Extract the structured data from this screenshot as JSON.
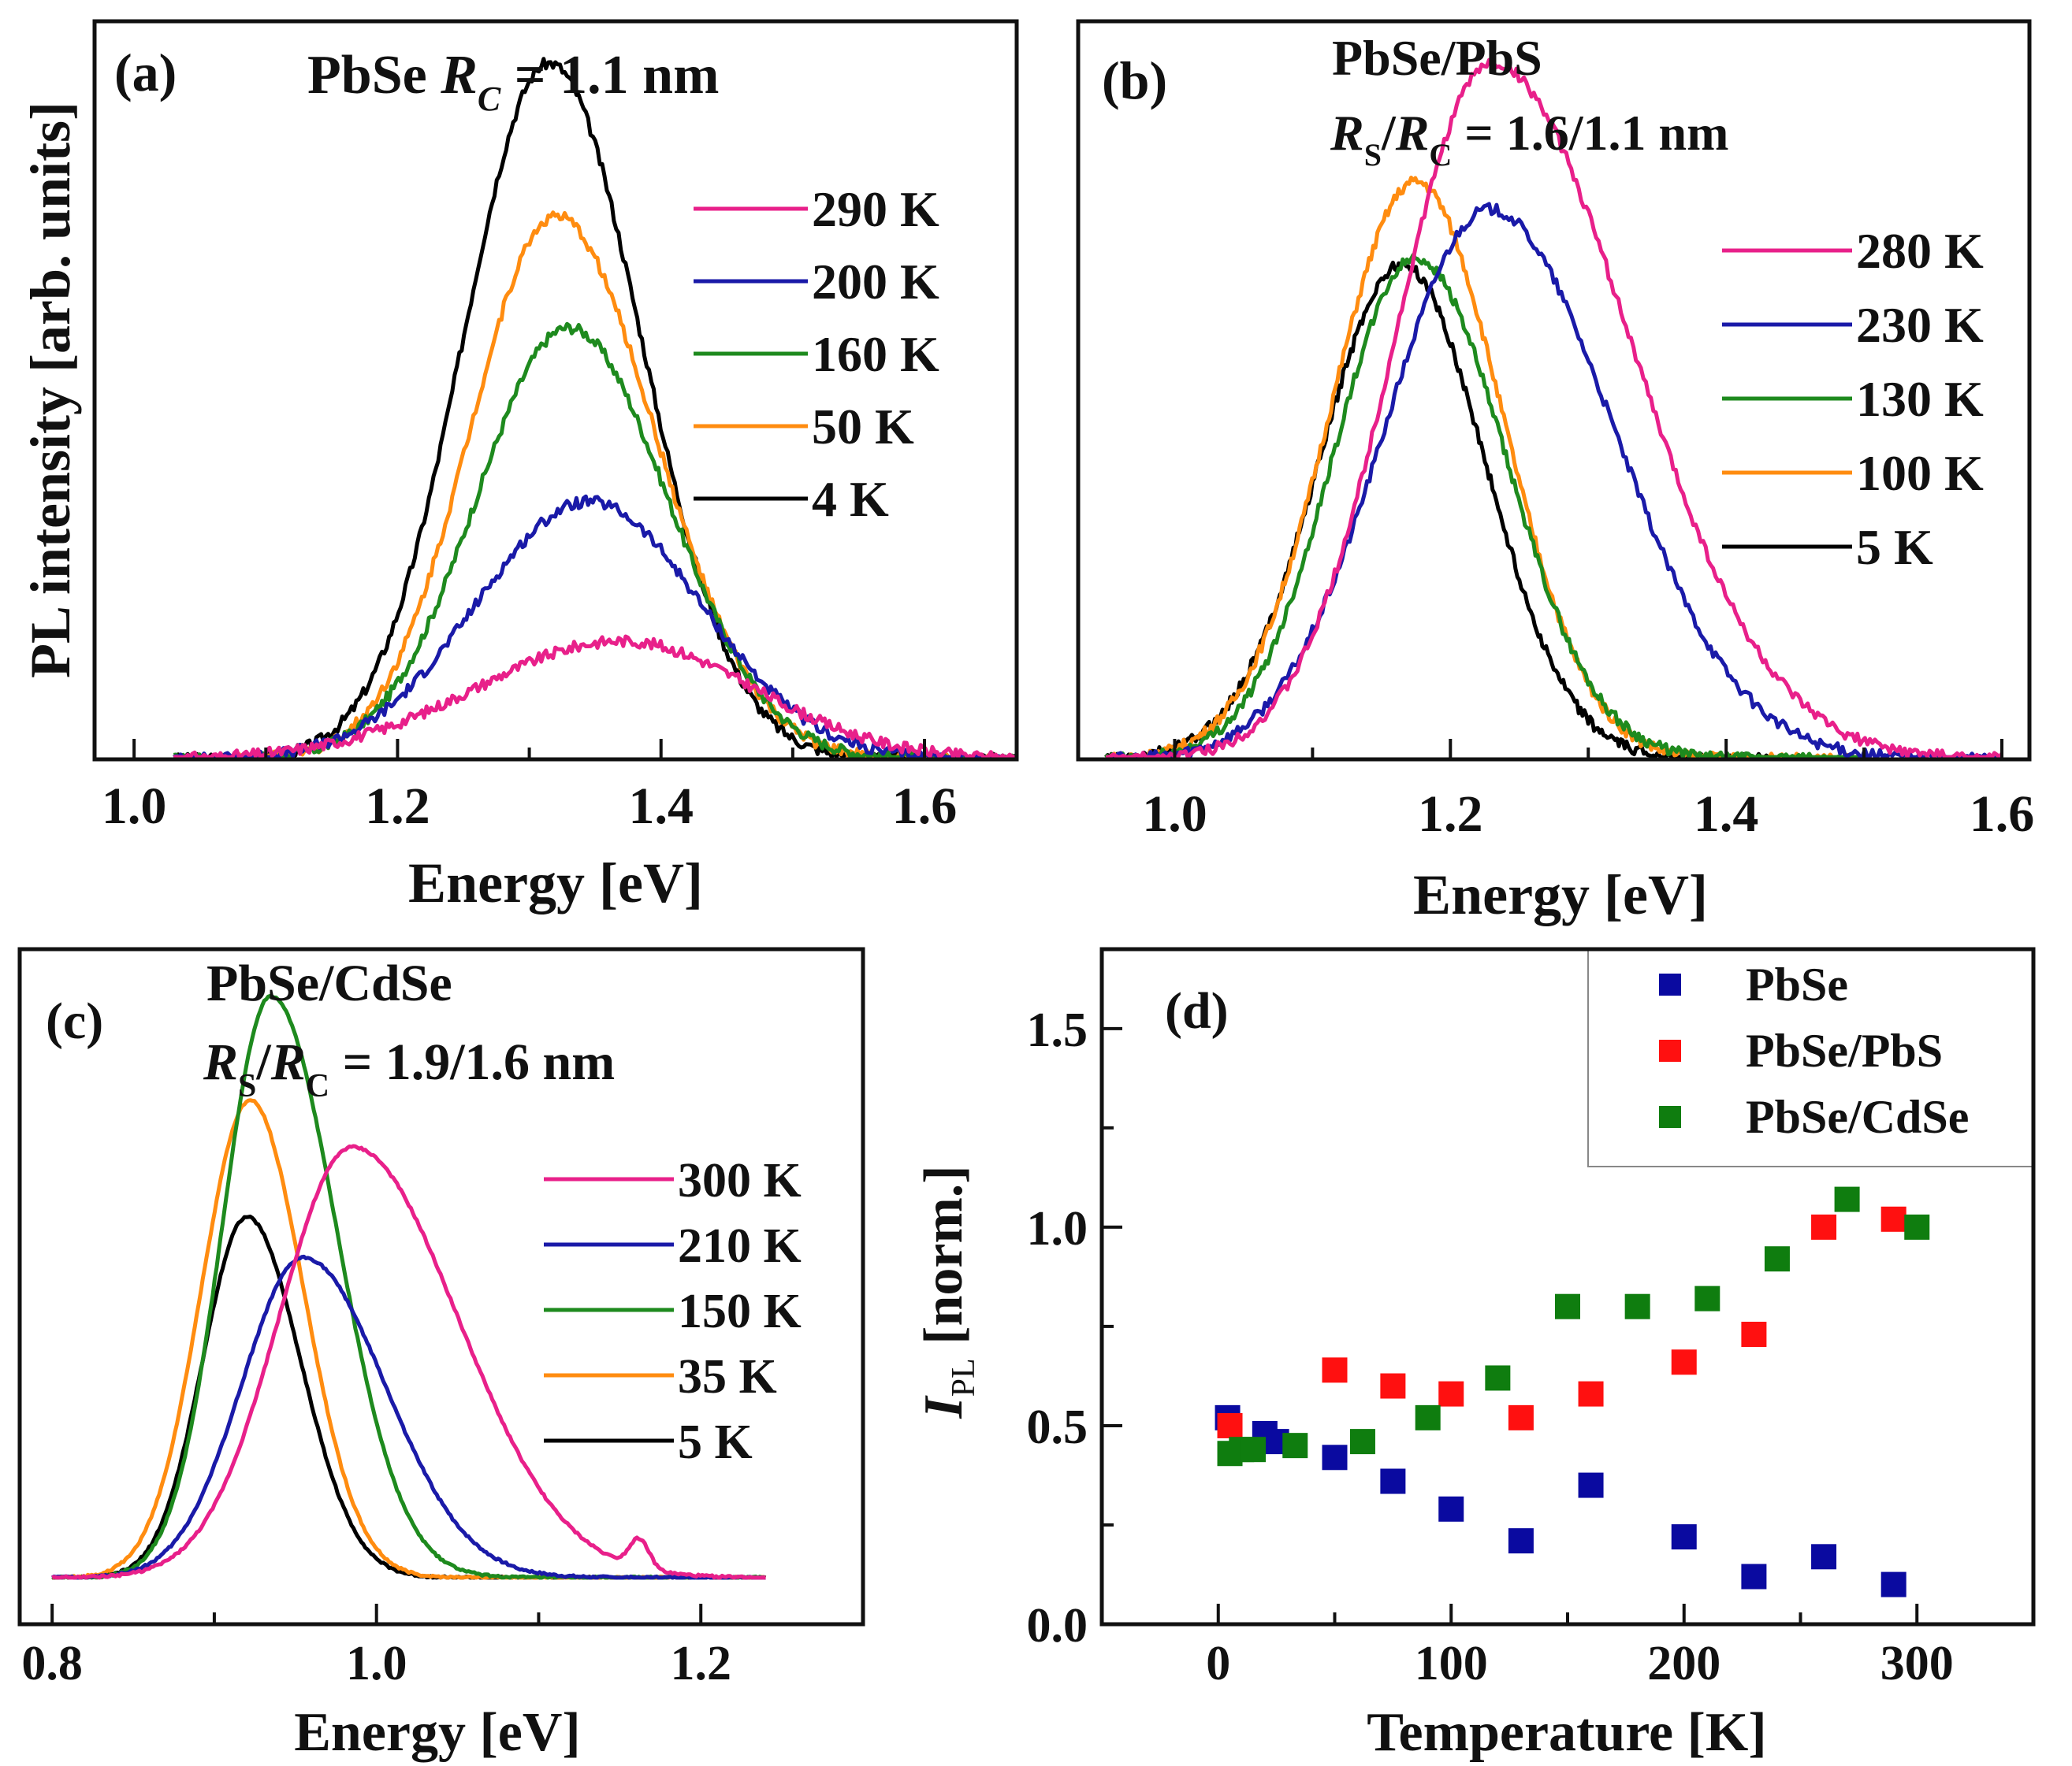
{
  "chart_data": [
    {
      "id": "a",
      "type": "line",
      "panel_label": "(a)",
      "title_parts": [
        "PbSe ",
        "R",
        "C",
        " = 1.1 nm"
      ],
      "title": "PbSe R_C = 1.1 nm",
      "xlabel": "Energy [eV]",
      "ylabel": "PL intensity [arb. units]",
      "xlim": [
        0.97,
        1.67
      ],
      "ylim": [
        0,
        1.06
      ],
      "x_ticks": [
        1.0,
        1.2,
        1.4,
        1.6
      ],
      "x_tick_labels": [
        "1.0",
        "1.2",
        "1.4",
        "1.6"
      ],
      "x_minor_ticks": [
        1.1,
        1.3,
        1.5
      ],
      "legend_position": "top-right",
      "series": [
        {
          "name": "290 K",
          "color": "#e8208a",
          "peak_x": 1.37,
          "peak_y": 0.17,
          "width_lo": 0.11,
          "width_hi": 0.1,
          "x_range": [
            1.03,
            1.67
          ]
        },
        {
          "name": "200 K",
          "color": "#1a1aa8",
          "peak_x": 1.345,
          "peak_y": 0.37,
          "width_lo": 0.085,
          "width_hi": 0.085,
          "x_range": [
            1.03,
            1.67
          ]
        },
        {
          "name": "160 K",
          "color": "#1e8a1e",
          "peak_x": 1.33,
          "peak_y": 0.62,
          "width_lo": 0.07,
          "width_hi": 0.075,
          "x_range": [
            1.03,
            1.67
          ]
        },
        {
          "name": "50 K",
          "color": "#ff8c10",
          "peak_x": 1.32,
          "peak_y": 0.78,
          "width_lo": 0.065,
          "width_hi": 0.075,
          "x_range": [
            1.03,
            1.67
          ]
        },
        {
          "name": "4 K",
          "color": "#000000",
          "peak_x": 1.315,
          "peak_y": 1.0,
          "width_lo": 0.065,
          "width_hi": 0.07,
          "x_range": [
            1.03,
            1.67
          ]
        }
      ]
    },
    {
      "id": "b",
      "type": "line",
      "panel_label": "(b)",
      "title_line1": "PbSe/PbS",
      "title_parts": [
        "R",
        "S",
        "/",
        "R",
        "C",
        " = 1.6/1.1 nm"
      ],
      "title": "PbSe/PbS R_S/R_C = 1.6/1.1 nm",
      "xlabel": "Energy [eV]",
      "ylabel": "",
      "xlim": [
        0.93,
        1.62
      ],
      "ylim": [
        0,
        1.06
      ],
      "x_ticks": [
        1.0,
        1.2,
        1.4,
        1.6
      ],
      "x_tick_labels": [
        "1.0",
        "1.2",
        "1.4",
        "1.6"
      ],
      "x_minor_ticks": [
        1.1,
        1.3,
        1.5
      ],
      "legend_position": "top-right",
      "series": [
        {
          "name": "280 K",
          "color": "#e8208a",
          "peak_x": 1.23,
          "peak_y": 1.0,
          "width_lo": 0.07,
          "width_hi": 0.1,
          "x_range": [
            0.95,
            1.6
          ]
        },
        {
          "name": "230 K",
          "color": "#1a1aa8",
          "peak_x": 1.228,
          "peak_y": 0.79,
          "width_lo": 0.075,
          "width_hi": 0.09,
          "x_range": [
            0.95,
            1.6
          ]
        },
        {
          "name": "130 K",
          "color": "#1e8a1e",
          "peak_x": 1.175,
          "peak_y": 0.72,
          "width_lo": 0.06,
          "width_hi": 0.065,
          "x_range": [
            0.95,
            1.5
          ]
        },
        {
          "name": "100 K",
          "color": "#ff8c10",
          "peak_x": 1.175,
          "peak_y": 0.83,
          "width_lo": 0.062,
          "width_hi": 0.062,
          "x_range": [
            0.95,
            1.5
          ]
        },
        {
          "name": "5 K",
          "color": "#000000",
          "peak_x": 1.165,
          "peak_y": 0.71,
          "width_lo": 0.06,
          "width_hi": 0.06,
          "x_range": [
            0.95,
            1.45
          ]
        }
      ]
    },
    {
      "id": "c",
      "type": "line",
      "panel_label": "(c)",
      "title_line1": "PbSe/CdSe",
      "title_parts": [
        "R",
        "S",
        "/",
        "R",
        "C",
        " = 1.9/1.6 nm"
      ],
      "title": "PbSe/CdSe R_S/R_C = 1.9/1.6 nm",
      "xlabel": "Energy [eV]",
      "ylabel": "",
      "xlim": [
        0.78,
        1.3
      ],
      "ylim": [
        -0.08,
        1.08
      ],
      "x_ticks": [
        0.8,
        1.0,
        1.2
      ],
      "x_tick_labels": [
        "0.8",
        "1.0",
        "1.2"
      ],
      "x_minor_ticks": [
        0.9,
        1.1
      ],
      "legend_position": "top-right",
      "series": [
        {
          "name": "300 K",
          "color": "#e8208a",
          "peak_x": 0.985,
          "peak_y": 0.74,
          "width_lo": 0.045,
          "width_hi": 0.065,
          "x_range": [
            0.8,
            1.24
          ]
        },
        {
          "name": "210 K",
          "color": "#1a1aa8",
          "peak_x": 0.955,
          "peak_y": 0.55,
          "width_lo": 0.038,
          "width_hi": 0.05,
          "x_range": [
            0.8,
            1.24
          ]
        },
        {
          "name": "150 K",
          "color": "#1e8a1e",
          "peak_x": 0.935,
          "peak_y": 1.0,
          "width_lo": 0.03,
          "width_hi": 0.04,
          "x_range": [
            0.8,
            1.24
          ]
        },
        {
          "name": "35 K",
          "color": "#ff8c10",
          "peak_x": 0.922,
          "peak_y": 0.82,
          "width_lo": 0.03,
          "width_hi": 0.033,
          "x_range": [
            0.8,
            1.24
          ]
        },
        {
          "name": "5 K",
          "color": "#000000",
          "peak_x": 0.92,
          "peak_y": 0.62,
          "width_lo": 0.027,
          "width_hi": 0.033,
          "x_range": [
            0.8,
            1.24
          ]
        }
      ]
    },
    {
      "id": "d",
      "type": "scatter",
      "panel_label": "(d)",
      "title": "",
      "xlabel": "Temperature [K]",
      "ylabel_main": "I",
      "ylabel_sub": "PL",
      "ylabel_rest": " [norm.]",
      "ylabel": "I_PL [norm.]",
      "xlim": [
        -50,
        350
      ],
      "ylim": [
        0.0,
        1.7
      ],
      "x_ticks": [
        0,
        100,
        200,
        300
      ],
      "x_tick_labels": [
        "0",
        "100",
        "200",
        "300"
      ],
      "x_minor_ticks": [
        50,
        150,
        250
      ],
      "y_ticks": [
        0.0,
        0.5,
        1.0,
        1.5
      ],
      "y_tick_labels": [
        "0.0",
        "0.5",
        "1.0",
        "1.5"
      ],
      "y_minor_ticks": [
        0.25,
        0.75,
        1.25
      ],
      "legend_position": "top-right",
      "series": [
        {
          "name": "PbSe",
          "color": "#0a0aa0",
          "x": [
            4,
            20,
            25,
            50,
            75,
            100,
            130,
            160,
            200,
            230,
            260,
            290
          ],
          "y": [
            0.52,
            0.48,
            0.46,
            0.42,
            0.36,
            0.29,
            0.21,
            0.35,
            0.22,
            0.12,
            0.17,
            0.1
          ]
        },
        {
          "name": "PbSe/PbS",
          "color": "#ff1010",
          "x": [
            5,
            50,
            75,
            100,
            130,
            160,
            200,
            230,
            260,
            290
          ],
          "y": [
            0.5,
            0.64,
            0.6,
            0.58,
            0.52,
            0.58,
            0.66,
            0.73,
            1.0,
            1.02
          ]
        },
        {
          "name": "PbSe/CdSe",
          "color": "#0f7d0f",
          "x": [
            5,
            10,
            15,
            33,
            62,
            90,
            120,
            150,
            180,
            210,
            240,
            270,
            300
          ],
          "y": [
            0.43,
            0.44,
            0.44,
            0.45,
            0.46,
            0.52,
            0.62,
            0.8,
            0.8,
            0.82,
            0.92,
            1.07,
            1.0
          ]
        }
      ]
    }
  ]
}
